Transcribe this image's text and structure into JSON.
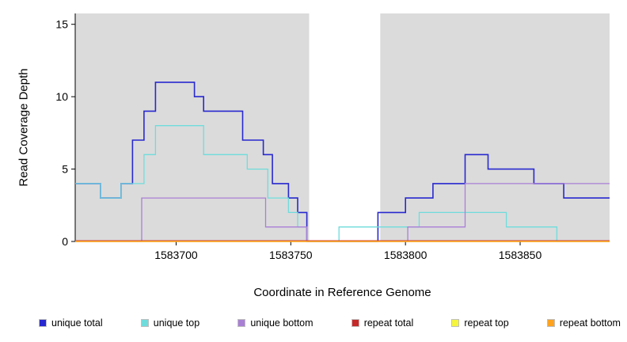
{
  "chart_data": {
    "type": "line",
    "title": "",
    "xlabel": "Coordinate in Reference Genome",
    "ylabel": "Read Coverage Depth",
    "xlim": [
      1583656,
      1583889
    ],
    "ylim": [
      0,
      15.75
    ],
    "xticks": [
      1583700,
      1583750,
      1583800,
      1583850
    ],
    "yticks": [
      0,
      5,
      10,
      15
    ],
    "grid": false,
    "legend_position": "bottom",
    "background_regions": [
      {
        "x0": 1583656,
        "x1": 1583758,
        "color": "#DBDBDB"
      },
      {
        "x0": 1583789,
        "x1": 1583889,
        "color": "#DBDBDB"
      }
    ],
    "series": [
      {
        "name": "unique total",
        "color": "#2828D0",
        "width": 1.6,
        "dy": 0,
        "steps": [
          [
            1583656,
            4
          ],
          [
            1583667,
            3
          ],
          [
            1583676,
            4
          ],
          [
            1583681,
            7
          ],
          [
            1583686,
            9
          ],
          [
            1583691,
            11
          ],
          [
            1583708,
            10
          ],
          [
            1583712,
            9
          ],
          [
            1583729,
            7
          ],
          [
            1583738,
            6
          ],
          [
            1583742,
            4
          ],
          [
            1583749,
            3
          ],
          [
            1583753,
            2
          ],
          [
            1583757,
            0
          ],
          [
            1583788,
            2
          ],
          [
            1583800,
            3
          ],
          [
            1583812,
            4
          ],
          [
            1583826,
            6
          ],
          [
            1583836,
            5
          ],
          [
            1583856,
            4
          ],
          [
            1583869,
            3
          ]
        ]
      },
      {
        "name": "unique top",
        "color": "#6FDCDC",
        "width": 1.3,
        "dy": 0,
        "steps": [
          [
            1583656,
            4
          ],
          [
            1583667,
            3
          ],
          [
            1583676,
            4
          ],
          [
            1583686,
            6
          ],
          [
            1583691,
            8
          ],
          [
            1583712,
            6
          ],
          [
            1583731,
            5
          ],
          [
            1583740,
            3
          ],
          [
            1583749,
            2
          ],
          [
            1583753,
            1
          ],
          [
            1583757,
            0
          ],
          [
            1583771,
            1
          ],
          [
            1583790,
            1
          ],
          [
            1583806,
            2
          ],
          [
            1583844,
            1
          ],
          [
            1583866,
            0
          ]
        ]
      },
      {
        "name": "unique bottom",
        "color": "#A97FD6",
        "width": 1.3,
        "dy": 0,
        "steps": [
          [
            1583656,
            0
          ],
          [
            1583685,
            3
          ],
          [
            1583739,
            1
          ],
          [
            1583757,
            0
          ],
          [
            1583801,
            1
          ],
          [
            1583826,
            4
          ]
        ]
      },
      {
        "name": "repeat total",
        "color": "#C62828",
        "width": 1.1,
        "dy": -1,
        "steps": [
          [
            1583656,
            0
          ]
        ]
      },
      {
        "name": "repeat top",
        "color": "#F5F53C",
        "width": 1.2,
        "dy": 0,
        "steps": [
          [
            1583656,
            0
          ]
        ]
      },
      {
        "name": "repeat bottom",
        "color": "#FFA21E",
        "width": 1.4,
        "dy": 0,
        "steps": [
          [
            1583656,
            0
          ]
        ]
      }
    ]
  }
}
